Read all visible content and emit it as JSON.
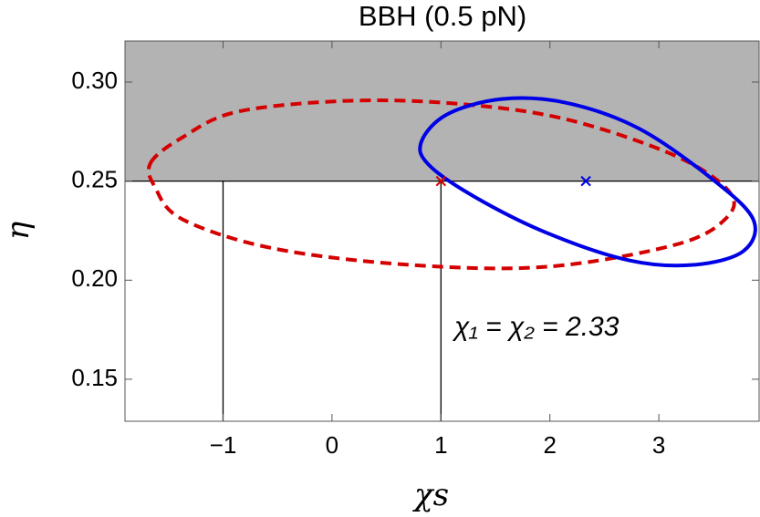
{
  "chart_data": {
    "type": "contour",
    "title": "BBH (0.5 pN)",
    "x_label": "χs",
    "y_label": "η",
    "xlim": [
      -1.9,
      3.92
    ],
    "ylim": [
      0.1288,
      0.3207
    ],
    "xticks": [
      {
        "value": -1,
        "label": "−1"
      },
      0,
      1,
      2,
      3
    ],
    "yticks": [
      0.15,
      {
        "value": 0.2,
        "label": "0.20"
      },
      0.25,
      {
        "value": 0.3,
        "label": "0.30"
      }
    ],
    "shade_above": 0.25,
    "shade_color": "#b3b3b3",
    "vlines": [
      -1,
      1
    ],
    "series": [
      {
        "color": "#d40000",
        "dashed": true,
        "x": [
          -1.665,
          -1.372,
          -0.87,
          0.134,
          1.138,
          2.142,
          3.146,
          3.649,
          3.607,
          3.146,
          1.975,
          0.72,
          -0.536,
          -1.372,
          -1.623
        ],
        "y": [
          0.2592,
          0.2721,
          0.285,
          0.2905,
          0.2891,
          0.2813,
          0.2629,
          0.2445,
          0.2307,
          0.2178,
          0.2068,
          0.2077,
          0.216,
          0.2307,
          0.2468
        ]
      },
      {
        "color": "#0000e6",
        "dashed": false,
        "x": [
          0.82,
          1.054,
          1.556,
          2.142,
          2.812,
          3.481,
          3.866,
          3.774,
          3.314,
          2.728,
          1.975,
          1.305,
          0.887
        ],
        "y": [
          0.2698,
          0.2836,
          0.2914,
          0.2896,
          0.2767,
          0.2514,
          0.2307,
          0.2146,
          0.2077,
          0.21,
          0.2238,
          0.2422,
          0.2583
        ]
      }
    ],
    "points": [
      {
        "x": 1,
        "y": 0.25,
        "color": "#d40000"
      },
      {
        "x": 2.33,
        "y": 0.25,
        "color": "#0000e6"
      }
    ],
    "annotation": {
      "text": "χ₁ = χ₂ =  2.33",
      "color": "#0000e6"
    }
  }
}
